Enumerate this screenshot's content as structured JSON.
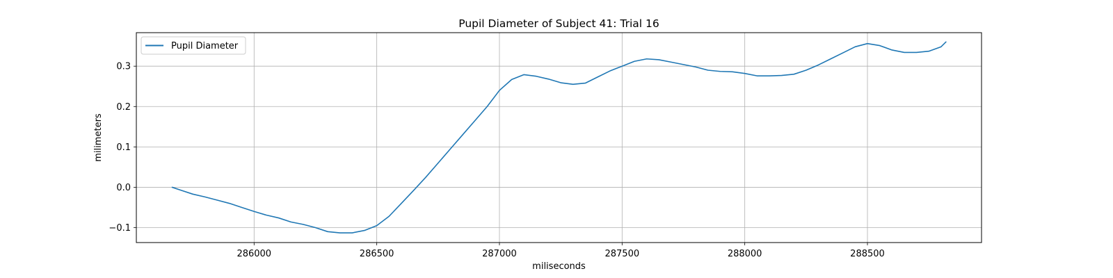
{
  "chart_data": {
    "type": "line",
    "title": "Pupil Diameter of Subject 41: Trial 16",
    "xlabel": "miliseconds",
    "ylabel": "milimeters",
    "xlim": [
      285520,
      288965
    ],
    "ylim": [
      -0.137,
      0.383
    ],
    "xticks": [
      286000,
      286500,
      287000,
      287500,
      288000,
      288500
    ],
    "xtick_labels": [
      "286000",
      "286500",
      "287000",
      "287500",
      "288000",
      "288500"
    ],
    "yticks": [
      -0.1,
      0.0,
      0.1,
      0.2,
      0.3
    ],
    "ytick_labels": [
      "−0.1",
      "0.0",
      "0.1",
      "0.2",
      "0.3"
    ],
    "grid": true,
    "legend": {
      "position": "top-left",
      "entries": [
        "Pupil Diameter"
      ]
    },
    "series": [
      {
        "name": "Pupil Diameter",
        "color": "#1f77b4",
        "x": [
          285666,
          285700,
          285750,
          285800,
          285850,
          285900,
          285950,
          286000,
          286050,
          286100,
          286150,
          286200,
          286250,
          286300,
          286350,
          286400,
          286450,
          286500,
          286550,
          286600,
          286650,
          286700,
          286750,
          286800,
          286850,
          286900,
          286950,
          287000,
          287050,
          287100,
          287150,
          287200,
          287250,
          287300,
          287350,
          287400,
          287450,
          287500,
          287550,
          287600,
          287650,
          287700,
          287750,
          287800,
          287850,
          287900,
          287950,
          288000,
          288050,
          288100,
          288150,
          288200,
          288250,
          288300,
          288350,
          288400,
          288450,
          288500,
          288550,
          288600,
          288650,
          288700,
          288750,
          288800,
          288820
        ],
        "y": [
          0.0,
          -0.007,
          -0.017,
          -0.024,
          -0.032,
          -0.04,
          -0.05,
          -0.06,
          -0.069,
          -0.076,
          -0.086,
          -0.092,
          -0.1,
          -0.11,
          -0.113,
          -0.113,
          -0.107,
          -0.095,
          -0.072,
          -0.04,
          -0.008,
          0.025,
          0.06,
          0.095,
          0.13,
          0.165,
          0.2,
          0.24,
          0.267,
          0.279,
          0.275,
          0.268,
          0.259,
          0.255,
          0.258,
          0.273,
          0.288,
          0.3,
          0.312,
          0.318,
          0.316,
          0.31,
          0.304,
          0.298,
          0.29,
          0.287,
          0.286,
          0.282,
          0.276,
          0.276,
          0.277,
          0.28,
          0.29,
          0.303,
          0.318,
          0.333,
          0.348,
          0.356,
          0.351,
          0.34,
          0.334,
          0.334,
          0.337,
          0.348,
          0.36
        ]
      }
    ]
  }
}
